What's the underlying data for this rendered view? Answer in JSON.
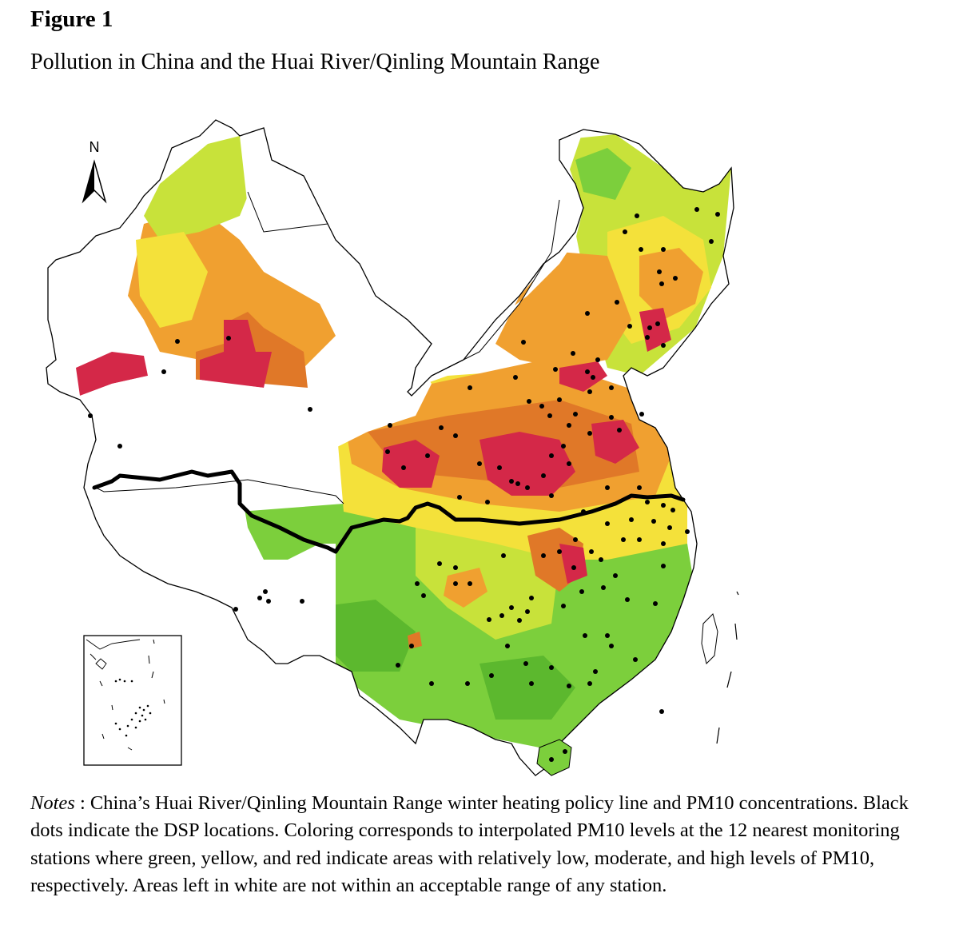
{
  "figure": {
    "label": "Figure 1",
    "title": "Pollution in China and the Huai River/Qinling Mountain Range"
  },
  "map": {
    "north_label": "N",
    "colors": {
      "low": "#7ccf3c",
      "low_dark": "#5cb82e",
      "moderate_low": "#c8e23a",
      "moderate": "#f4e13a",
      "moderate_high": "#f0a030",
      "high": "#e07828",
      "very_high": "#d42848",
      "excluded": "#ffffff",
      "border": "#000000",
      "policy_line": "#000000",
      "dsp_dot": "#000000"
    }
  },
  "notes": {
    "label": "Notes",
    "text": " : China’s Huai River/Qinling Mountain Range winter heating policy line and PM10 concentrations. Black dots indicate the DSP locations. Coloring corresponds to interpolated PM10 levels at the 12 nearest monitoring stations where green, yellow, and red indicate areas with relatively low, moderate, and high levels of PM10, respectively. Areas left in white are not within an acceptable range of any station."
  }
}
